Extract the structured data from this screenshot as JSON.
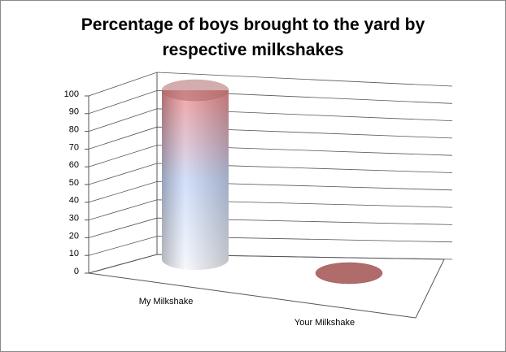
{
  "chart_data": {
    "type": "bar3d-cylinder",
    "title": "Percentage of boys brought to the yard by respective milkshakes",
    "categories": [
      "My Milkshake",
      "Your Milkshake"
    ],
    "values": [
      100,
      0
    ],
    "color": "#b06b6b",
    "ylim": [
      0,
      100
    ],
    "yticks": [
      0,
      10,
      20,
      30,
      40,
      50,
      60,
      70,
      80,
      90,
      100
    ],
    "grid": true
  }
}
